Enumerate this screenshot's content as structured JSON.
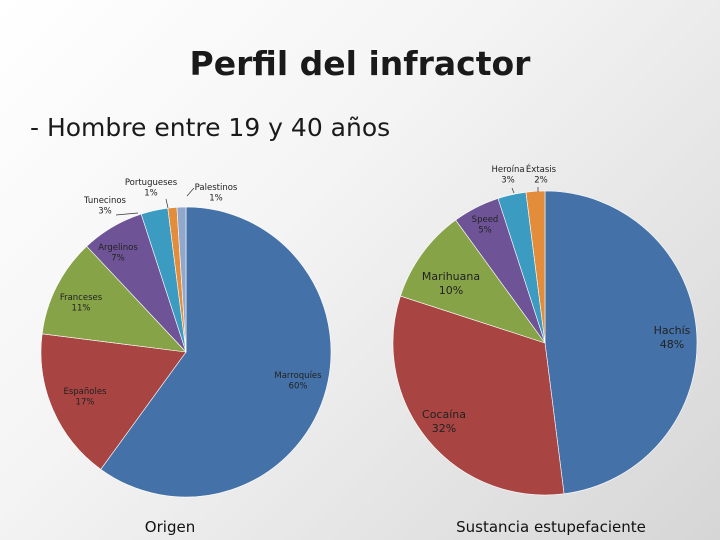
{
  "slide": {
    "title": "Perfil del infractor",
    "subtitle": "- Hombre entre 19 y 40 años"
  },
  "chart_data": [
    {
      "type": "pie",
      "title": "Origen",
      "categories": [
        "Marroquíes",
        "Españoles",
        "Franceses",
        "Argelinos",
        "Tunecinos",
        "Portugueses",
        "Palestinos"
      ],
      "values": [
        60,
        17,
        11,
        7,
        3,
        1,
        1
      ],
      "labels": [
        "Marroquíes\n60%",
        "Españoles\n17%",
        "Franceses\n11%",
        "Argelinos\n7%",
        "Tunecinos\n3%",
        "Portugueses\n1%",
        "Palestinos\n1%"
      ],
      "colors": [
        "#4472A8",
        "#A84442",
        "#87A347",
        "#6E5496",
        "#3C9BC1",
        "#E38C3A",
        "#8FA8CC"
      ]
    },
    {
      "type": "pie",
      "title": "Sustancia estupefaciente",
      "categories": [
        "Hachís",
        "Cocaína",
        "Marihuana",
        "Speed",
        "Heroína",
        "Éxtasis"
      ],
      "values": [
        48,
        32,
        10,
        5,
        3,
        2
      ],
      "labels": [
        "Hachís\n48%",
        "Cocaína\n32%",
        "Marihuana\n10%",
        "Speed\n5%",
        "Heroína\n3%",
        "Éxtasis\n2%"
      ],
      "colors": [
        "#4472A8",
        "#A84442",
        "#87A347",
        "#6E5496",
        "#3C9BC1",
        "#E38C3A"
      ]
    }
  ]
}
